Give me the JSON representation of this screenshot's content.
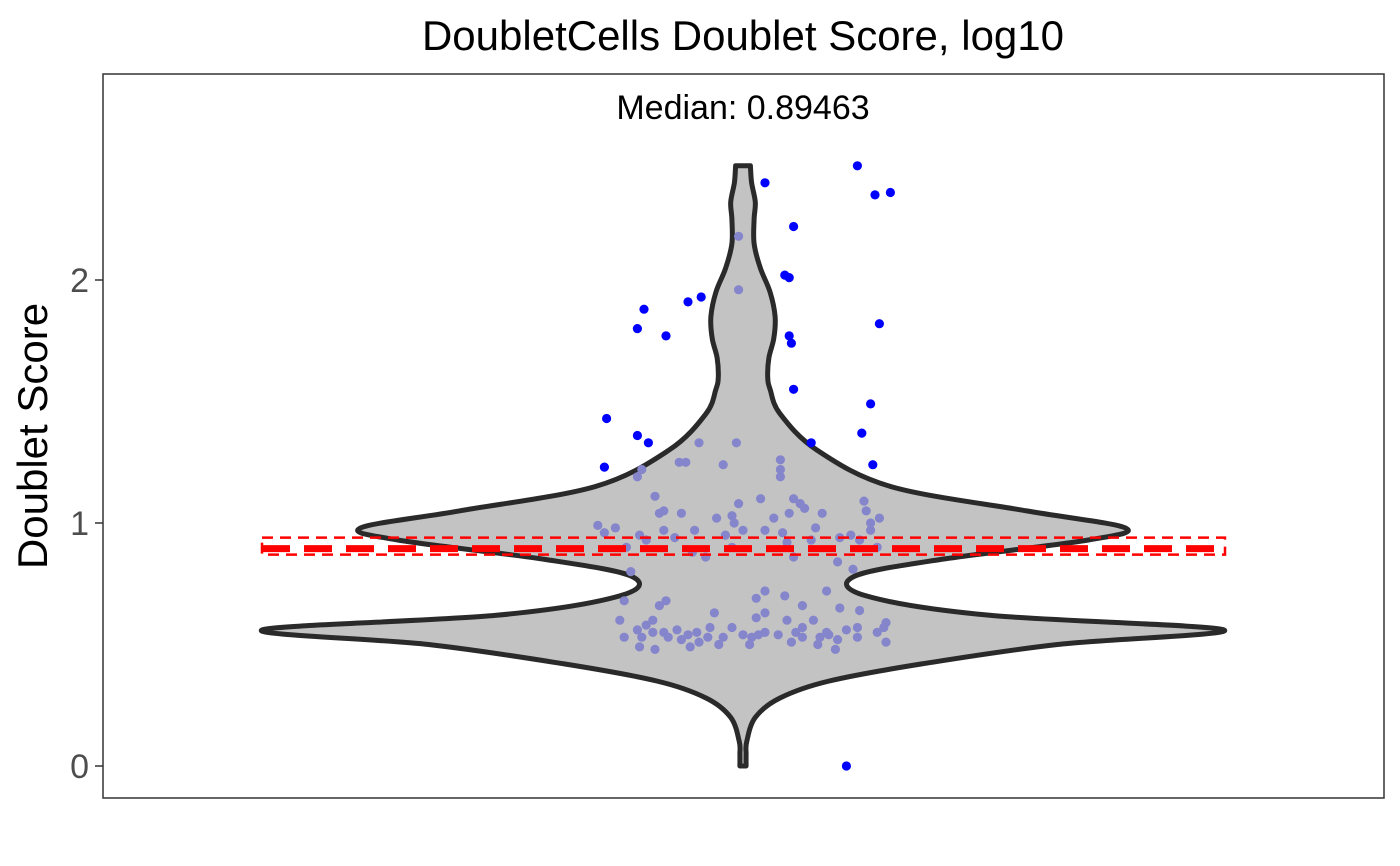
{
  "chart_data": {
    "type": "violin",
    "title": "DoubletCells Doublet Score, log10",
    "annotation": "Median: 0.89463",
    "xlabel": "",
    "ylabel": "Doublet Score",
    "ylim": [
      -0.11,
      2.88
    ],
    "yticks": [
      0,
      1,
      2
    ],
    "ytick_labels": [
      "0",
      "1",
      "2"
    ],
    "grid": false,
    "median": 0.89463,
    "median_band": [
      0.87,
      0.94
    ],
    "colors": {
      "violin_fill": "#c3c3c3",
      "violin_stroke": "#2a2a2a",
      "point_inside": "#8585cc",
      "point_outlier": "#0000ff",
      "median_line": "#ff0000"
    },
    "density_profile": [
      [
        0.0,
        0.025
      ],
      [
        0.05,
        0.025
      ],
      [
        0.1,
        0.03
      ],
      [
        0.2,
        0.1
      ],
      [
        0.28,
        0.3
      ],
      [
        0.35,
        0.7
      ],
      [
        0.42,
        1.45
      ],
      [
        0.5,
        2.55
      ],
      [
        0.56,
        3.9
      ],
      [
        0.62,
        2.0
      ],
      [
        0.7,
        1.0
      ],
      [
        0.78,
        0.9
      ],
      [
        0.85,
        1.6
      ],
      [
        0.93,
        2.8
      ],
      [
        0.98,
        3.1
      ],
      [
        1.05,
        2.3
      ],
      [
        1.15,
        1.2
      ],
      [
        1.3,
        0.6
      ],
      [
        1.45,
        0.3
      ],
      [
        1.55,
        0.22
      ],
      [
        1.6,
        0.2
      ],
      [
        1.68,
        0.21
      ],
      [
        1.76,
        0.25
      ],
      [
        1.85,
        0.26
      ],
      [
        1.95,
        0.22
      ],
      [
        2.05,
        0.14
      ],
      [
        2.15,
        0.09
      ],
      [
        2.25,
        0.09
      ],
      [
        2.32,
        0.1
      ],
      [
        2.4,
        0.07
      ],
      [
        2.47,
        0.06
      ]
    ],
    "points": [
      {
        "x": 0.52,
        "y": 2.47
      },
      {
        "x": 0.1,
        "y": 2.4
      },
      {
        "x": 0.6,
        "y": 2.35
      },
      {
        "x": 0.67,
        "y": 2.36
      },
      {
        "x": 0.23,
        "y": 2.22
      },
      {
        "x": 0.19,
        "y": 2.02
      },
      {
        "x": 0.21,
        "y": 2.01
      },
      {
        "x": -0.19,
        "y": 1.93
      },
      {
        "x": -0.25,
        "y": 1.91
      },
      {
        "x": -0.45,
        "y": 1.88
      },
      {
        "x": -0.48,
        "y": 1.8
      },
      {
        "x": 0.62,
        "y": 1.82
      },
      {
        "x": -0.35,
        "y": 1.77
      },
      {
        "x": 0.21,
        "y": 1.77
      },
      {
        "x": 0.22,
        "y": 1.74
      },
      {
        "x": 0.23,
        "y": 1.55
      },
      {
        "x": 0.58,
        "y": 1.49
      },
      {
        "x": -0.62,
        "y": 1.43
      },
      {
        "x": 0.54,
        "y": 1.37
      },
      {
        "x": -0.48,
        "y": 1.36
      },
      {
        "x": -0.43,
        "y": 1.33
      },
      {
        "x": 0.59,
        "y": 1.24
      },
      {
        "x": -0.63,
        "y": 1.23
      },
      {
        "x": 0.47,
        "y": 0.0
      },
      {
        "x": -0.02,
        "y": 2.18
      },
      {
        "x": -0.02,
        "y": 1.96
      },
      {
        "x": -0.2,
        "y": 1.33
      },
      {
        "x": -0.03,
        "y": 1.33
      },
      {
        "x": 0.31,
        "y": 1.33
      },
      {
        "x": 0.17,
        "y": 1.26
      },
      {
        "x": -0.29,
        "y": 1.25
      },
      {
        "x": -0.26,
        "y": 1.25
      },
      {
        "x": -0.09,
        "y": 1.24
      },
      {
        "x": 0.17,
        "y": 1.22
      },
      {
        "x": -0.46,
        "y": 1.22
      },
      {
        "x": 0.17,
        "y": 1.19
      },
      {
        "x": -0.48,
        "y": 1.19
      },
      {
        "x": -0.4,
        "y": 1.11
      },
      {
        "x": 0.08,
        "y": 1.1
      },
      {
        "x": 0.23,
        "y": 1.1
      },
      {
        "x": -0.02,
        "y": 1.08
      },
      {
        "x": 0.26,
        "y": 1.08
      },
      {
        "x": 0.55,
        "y": 1.09
      },
      {
        "x": 0.28,
        "y": 1.06
      },
      {
        "x": -0.12,
        "y": 1.02
      },
      {
        "x": -0.05,
        "y": 1.03
      },
      {
        "x": 0.21,
        "y": 1.04
      },
      {
        "x": 0.56,
        "y": 1.05
      },
      {
        "x": -0.38,
        "y": 1.04
      },
      {
        "x": -0.36,
        "y": 1.05
      },
      {
        "x": -0.28,
        "y": 1.04
      },
      {
        "x": 0.36,
        "y": 1.04
      },
      {
        "x": 0.58,
        "y": 1.0
      },
      {
        "x": -0.66,
        "y": 0.99
      },
      {
        "x": -0.58,
        "y": 0.98
      },
      {
        "x": 0.1,
        "y": 0.97
      },
      {
        "x": 0.33,
        "y": 0.98
      },
      {
        "x": 0.49,
        "y": 0.95
      },
      {
        "x": -0.47,
        "y": 0.95
      },
      {
        "x": -0.36,
        "y": 0.97
      },
      {
        "x": -0.44,
        "y": 0.93
      },
      {
        "x": -0.22,
        "y": 0.97
      },
      {
        "x": 0.58,
        "y": 0.97
      },
      {
        "x": 0.53,
        "y": 0.93
      },
      {
        "x": -0.31,
        "y": 0.94
      },
      {
        "x": 0.18,
        "y": 0.96
      },
      {
        "x": 0.2,
        "y": 0.92
      },
      {
        "x": -0.63,
        "y": 0.96
      },
      {
        "x": 0.44,
        "y": 0.94
      },
      {
        "x": -0.08,
        "y": 0.95
      },
      {
        "x": 0.0,
        "y": 0.97
      },
      {
        "x": 0.31,
        "y": 0.93
      },
      {
        "x": -0.53,
        "y": 0.9
      },
      {
        "x": -0.23,
        "y": 0.88
      },
      {
        "x": -0.05,
        "y": 0.9
      },
      {
        "x": 0.23,
        "y": 0.86
      },
      {
        "x": 0.43,
        "y": 0.84
      },
      {
        "x": -0.17,
        "y": 0.86
      },
      {
        "x": 0.5,
        "y": 0.81
      },
      {
        "x": -0.51,
        "y": 0.8
      },
      {
        "x": 0.61,
        "y": 0.9
      },
      {
        "x": -0.04,
        "y": 1.0
      },
      {
        "x": 0.14,
        "y": 1.02
      },
      {
        "x": 0.62,
        "y": 1.02
      },
      {
        "x": -0.54,
        "y": 0.68
      },
      {
        "x": -0.35,
        "y": 0.68
      },
      {
        "x": 0.1,
        "y": 0.72
      },
      {
        "x": 0.38,
        "y": 0.72
      },
      {
        "x": 0.06,
        "y": 0.69
      },
      {
        "x": 0.19,
        "y": 0.7
      },
      {
        "x": -0.38,
        "y": 0.66
      },
      {
        "x": 0.27,
        "y": 0.66
      },
      {
        "x": 0.1,
        "y": 0.63
      },
      {
        "x": -0.13,
        "y": 0.63
      },
      {
        "x": 0.44,
        "y": 0.65
      },
      {
        "x": 0.53,
        "y": 0.64
      },
      {
        "x": -0.41,
        "y": 0.6
      },
      {
        "x": -0.56,
        "y": 0.6
      },
      {
        "x": 0.2,
        "y": 0.6
      },
      {
        "x": 0.06,
        "y": 0.61
      },
      {
        "x": 0.32,
        "y": 0.6
      },
      {
        "x": -0.44,
        "y": 0.58
      },
      {
        "x": 0.65,
        "y": 0.59
      },
      {
        "x": -0.05,
        "y": 0.57
      },
      {
        "x": -0.48,
        "y": 0.56
      },
      {
        "x": -0.3,
        "y": 0.56
      },
      {
        "x": 0.47,
        "y": 0.56
      },
      {
        "x": 0.61,
        "y": 0.55
      },
      {
        "x": 0.24,
        "y": 0.55
      },
      {
        "x": 0.1,
        "y": 0.55
      },
      {
        "x": -0.36,
        "y": 0.55
      },
      {
        "x": -0.25,
        "y": 0.54
      },
      {
        "x": 0.39,
        "y": 0.54
      },
      {
        "x": -0.54,
        "y": 0.53
      },
      {
        "x": 0.0,
        "y": 0.54
      },
      {
        "x": 0.16,
        "y": 0.54
      },
      {
        "x": 0.52,
        "y": 0.53
      },
      {
        "x": -0.46,
        "y": 0.53
      },
      {
        "x": -0.34,
        "y": 0.53
      },
      {
        "x": 0.35,
        "y": 0.53
      },
      {
        "x": -0.16,
        "y": 0.53
      },
      {
        "x": -0.09,
        "y": 0.53
      },
      {
        "x": 0.04,
        "y": 0.53
      },
      {
        "x": 0.27,
        "y": 0.53
      },
      {
        "x": -0.28,
        "y": 0.52
      },
      {
        "x": 0.43,
        "y": 0.52
      },
      {
        "x": -0.2,
        "y": 0.51
      },
      {
        "x": 0.22,
        "y": 0.51
      },
      {
        "x": 0.65,
        "y": 0.51
      },
      {
        "x": -0.11,
        "y": 0.5
      },
      {
        "x": 0.03,
        "y": 0.5
      },
      {
        "x": 0.34,
        "y": 0.5
      },
      {
        "x": -0.47,
        "y": 0.49
      },
      {
        "x": -0.4,
        "y": 0.48
      },
      {
        "x": 0.42,
        "y": 0.48
      },
      {
        "x": -0.24,
        "y": 0.49
      },
      {
        "x": 0.64,
        "y": 0.57
      },
      {
        "x": -0.21,
        "y": 0.55
      },
      {
        "x": 0.52,
        "y": 0.57
      },
      {
        "x": -0.41,
        "y": 0.55
      },
      {
        "x": 0.27,
        "y": 0.57
      },
      {
        "x": 0.38,
        "y": 0.55
      },
      {
        "x": 0.07,
        "y": 0.54
      },
      {
        "x": -0.15,
        "y": 0.57
      }
    ]
  }
}
